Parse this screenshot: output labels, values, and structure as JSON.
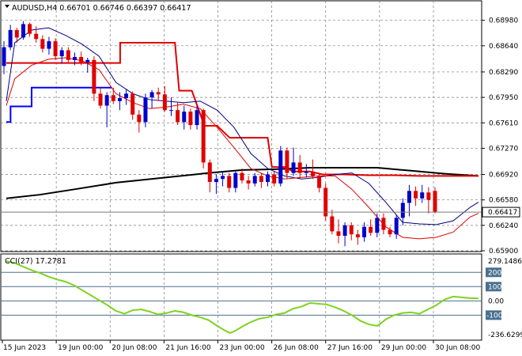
{
  "header": {
    "title": "AUDUSD,H4  0.66701 0.66746 0.66397 0.66417",
    "indicator": "CCI(27) 17.2781"
  },
  "chart_data": [
    {
      "type": "candlestick",
      "symbol": "AUDUSD",
      "timeframe": "H4",
      "ohlc_last": {
        "open": 0.66701,
        "high": 0.66746,
        "low": 0.66397,
        "close": 0.66417
      },
      "current_price_label": "0.66417",
      "ylim": [
        0.659,
        0.6904
      ],
      "y_ticks": [
        "0.68980",
        "0.68640",
        "0.68290",
        "0.67950",
        "0.67610",
        "0.67270",
        "0.66920",
        "0.66580",
        "0.66240",
        "0.65900"
      ],
      "x_ticks": [
        "15 Jun 2023",
        "19 Jun 00:00",
        "20 Jun 08:00",
        "21 Jun 16:00",
        "23 Jun 00:00",
        "26 Jun 08:00",
        "27 Jun 16:00",
        "29 Jun 00:00",
        "30 Jun 08:00"
      ],
      "candles": [
        [
          0.6837,
          0.687,
          0.6826,
          0.6862
        ],
        [
          0.6862,
          0.6892,
          0.6858,
          0.6885
        ],
        [
          0.6885,
          0.6888,
          0.6868,
          0.6875
        ],
        [
          0.6875,
          0.6897,
          0.6872,
          0.6893
        ],
        [
          0.6893,
          0.6895,
          0.6876,
          0.688
        ],
        [
          0.688,
          0.689,
          0.6868,
          0.6873
        ],
        [
          0.6873,
          0.6878,
          0.6855,
          0.686
        ],
        [
          0.686,
          0.6876,
          0.6852,
          0.687
        ],
        [
          0.687,
          0.6874,
          0.6845,
          0.685
        ],
        [
          0.685,
          0.6862,
          0.684,
          0.6858
        ],
        [
          0.6858,
          0.6862,
          0.684,
          0.6845
        ],
        [
          0.6845,
          0.6855,
          0.6838,
          0.6849
        ],
        [
          0.6849,
          0.6856,
          0.6838,
          0.6842
        ],
        [
          0.6842,
          0.6848,
          0.6828,
          0.6845
        ],
        [
          0.6845,
          0.685,
          0.679,
          0.68
        ],
        [
          0.68,
          0.6808,
          0.678,
          0.6784
        ],
        [
          0.6784,
          0.6802,
          0.6755,
          0.6798
        ],
        [
          0.6798,
          0.6808,
          0.6786,
          0.679
        ],
        [
          0.679,
          0.6802,
          0.6778,
          0.6794
        ],
        [
          0.6794,
          0.6806,
          0.6785,
          0.68
        ],
        [
          0.68,
          0.6803,
          0.6765,
          0.6772
        ],
        [
          0.6772,
          0.6778,
          0.6748,
          0.6762
        ],
        [
          0.6762,
          0.68,
          0.6755,
          0.6795
        ],
        [
          0.6795,
          0.6805,
          0.678,
          0.6802
        ],
        [
          0.6802,
          0.6808,
          0.679,
          0.6799
        ],
        [
          0.6799,
          0.681,
          0.6776,
          0.6778
        ],
        [
          0.6778,
          0.6795,
          0.677,
          0.6778
        ],
        [
          0.6778,
          0.6788,
          0.6758,
          0.6762
        ],
        [
          0.6762,
          0.6784,
          0.6752,
          0.6776
        ],
        [
          0.6776,
          0.678,
          0.6752,
          0.6758
        ],
        [
          0.6758,
          0.6784,
          0.6752,
          0.6778
        ],
        [
          0.6778,
          0.678,
          0.67,
          0.6708
        ],
        [
          0.6708,
          0.6712,
          0.6668,
          0.6682
        ],
        [
          0.6682,
          0.6692,
          0.6666,
          0.6686
        ],
        [
          0.6686,
          0.6696,
          0.6676,
          0.669
        ],
        [
          0.669,
          0.6694,
          0.6668,
          0.6674
        ],
        [
          0.6674,
          0.6696,
          0.6668,
          0.6694
        ],
        [
          0.6694,
          0.67,
          0.668,
          0.6684
        ],
        [
          0.6684,
          0.669,
          0.6672,
          0.668
        ],
        [
          0.668,
          0.6694,
          0.6676,
          0.669
        ],
        [
          0.669,
          0.6694,
          0.6674,
          0.6682
        ],
        [
          0.6682,
          0.6696,
          0.6676,
          0.6692
        ],
        [
          0.6692,
          0.6696,
          0.6676,
          0.668
        ],
        [
          0.668,
          0.673,
          0.6676,
          0.6724
        ],
        [
          0.6724,
          0.6728,
          0.6686,
          0.6694
        ],
        [
          0.6694,
          0.6728,
          0.669,
          0.6708
        ],
        [
          0.6708,
          0.6718,
          0.6686,
          0.6694
        ],
        [
          0.6694,
          0.6706,
          0.6688,
          0.6696
        ],
        [
          0.6696,
          0.6712,
          0.6686,
          0.669
        ],
        [
          0.669,
          0.6694,
          0.6668,
          0.6674
        ],
        [
          0.6674,
          0.668,
          0.663,
          0.6636
        ],
        [
          0.6636,
          0.6645,
          0.6612,
          0.6616
        ],
        [
          0.6616,
          0.6632,
          0.66,
          0.661
        ],
        [
          0.661,
          0.6628,
          0.6596,
          0.6624
        ],
        [
          0.6624,
          0.6628,
          0.6604,
          0.6612
        ],
        [
          0.6612,
          0.6618,
          0.6598,
          0.6608
        ],
        [
          0.6608,
          0.6628,
          0.6602,
          0.6622
        ],
        [
          0.6622,
          0.6632,
          0.661,
          0.6614
        ],
        [
          0.6614,
          0.664,
          0.6608,
          0.6634
        ],
        [
          0.6634,
          0.664,
          0.6612,
          0.6618
        ],
        [
          0.6618,
          0.6622,
          0.6608,
          0.6612
        ],
        [
          0.6612,
          0.6638,
          0.6606,
          0.6634
        ],
        [
          0.6634,
          0.666,
          0.6624,
          0.6654
        ],
        [
          0.6654,
          0.6678,
          0.6636,
          0.667
        ],
        [
          0.667,
          0.6676,
          0.665,
          0.666
        ],
        [
          0.666,
          0.6678,
          0.6654,
          0.6668
        ],
        [
          0.6668,
          0.6675,
          0.664,
          0.6658
        ],
        [
          0.667,
          0.6675,
          0.664,
          0.6642
        ]
      ],
      "overlays": {
        "red_step_line": [
          [
            0,
            0.6841
          ],
          [
            2,
            0.6841
          ],
          [
            26,
            0.6841
          ],
          [
            27,
            0.6841
          ],
          [
            27,
            0.6868
          ],
          [
            40,
            0.6868
          ],
          [
            40,
            0.6868
          ],
          [
            41,
            0.6804
          ],
          [
            44,
            0.6804
          ],
          [
            47,
            0.6757
          ],
          [
            50,
            0.6757
          ],
          [
            53,
            0.6741
          ],
          [
            62,
            0.6741
          ],
          [
            63,
            0.6702
          ],
          [
            66,
            0.6702
          ],
          [
            68,
            0.6696
          ],
          [
            72,
            0.6696
          ],
          [
            75,
            0.6692
          ],
          [
            80,
            0.6692
          ],
          [
            86,
            0.6691
          ],
          [
            92,
            0.6691
          ],
          [
            98,
            0.669
          ],
          [
            112,
            0.669
          ]
        ],
        "blue_step_line": [
          [
            0,
            0.6762
          ],
          [
            0,
            0.6762
          ],
          [
            1,
            0.6762
          ],
          [
            1,
            0.6783
          ],
          [
            6,
            0.6783
          ],
          [
            6,
            0.6808
          ],
          [
            25,
            0.6808
          ]
        ],
        "black_ma": [
          [
            0,
            0.666
          ],
          [
            8,
            0.6665
          ],
          [
            16,
            0.6672
          ],
          [
            26,
            0.6681
          ],
          [
            38,
            0.6688
          ],
          [
            48,
            0.6694
          ],
          [
            56,
            0.6698
          ],
          [
            64,
            0.6699
          ],
          [
            72,
            0.6701
          ],
          [
            80,
            0.6701
          ],
          [
            88,
            0.6701
          ],
          [
            96,
            0.6697
          ],
          [
            104,
            0.6693
          ],
          [
            112,
            0.669
          ]
        ],
        "navy_ma": [
          [
            0,
            0.679
          ],
          [
            2,
            0.6868
          ],
          [
            6,
            0.6885
          ],
          [
            10,
            0.6888
          ],
          [
            14,
            0.6878
          ],
          [
            18,
            0.6866
          ],
          [
            22,
            0.685
          ],
          [
            26,
            0.6815
          ],
          [
            30,
            0.68
          ],
          [
            34,
            0.6792
          ],
          [
            38,
            0.679
          ],
          [
            42,
            0.6788
          ],
          [
            46,
            0.679
          ],
          [
            50,
            0.6778
          ],
          [
            54,
            0.6755
          ],
          [
            58,
            0.672
          ],
          [
            62,
            0.67
          ],
          [
            66,
            0.669
          ],
          [
            70,
            0.6686
          ],
          [
            74,
            0.6688
          ],
          [
            78,
            0.6692
          ],
          [
            82,
            0.6694
          ],
          [
            86,
            0.668
          ],
          [
            90,
            0.6655
          ],
          [
            94,
            0.6628
          ],
          [
            98,
            0.6626
          ],
          [
            102,
            0.6625
          ],
          [
            106,
            0.663
          ],
          [
            110,
            0.6648
          ],
          [
            112,
            0.6655
          ]
        ],
        "red_ma": [
          [
            0,
            0.6784
          ],
          [
            2,
            0.682
          ],
          [
            6,
            0.6838
          ],
          [
            10,
            0.6846
          ],
          [
            14,
            0.6848
          ],
          [
            18,
            0.6844
          ],
          [
            22,
            0.6832
          ],
          [
            26,
            0.68
          ],
          [
            30,
            0.6788
          ],
          [
            34,
            0.678
          ],
          [
            38,
            0.6782
          ],
          [
            42,
            0.6786
          ],
          [
            46,
            0.678
          ],
          [
            50,
            0.6755
          ],
          [
            54,
            0.6728
          ],
          [
            58,
            0.67
          ],
          [
            62,
            0.669
          ],
          [
            66,
            0.6686
          ],
          [
            70,
            0.6688
          ],
          [
            74,
            0.669
          ],
          [
            78,
            0.669
          ],
          [
            82,
            0.6672
          ],
          [
            86,
            0.6648
          ],
          [
            90,
            0.6622
          ],
          [
            94,
            0.6608
          ],
          [
            98,
            0.6606
          ],
          [
            102,
            0.6608
          ],
          [
            106,
            0.6615
          ],
          [
            110,
            0.6635
          ],
          [
            112,
            0.664
          ]
        ]
      }
    },
    {
      "type": "line",
      "name": "CCI(27)",
      "current_value": 17.2781,
      "ylim": [
        -236.6299,
        279.1486
      ],
      "y_ticks": [
        "279.1486",
        "200",
        "100",
        "0.00",
        "-100",
        "-236.6299"
      ],
      "levels": [
        200,
        100,
        0,
        -100
      ],
      "values": [
        [
          0,
          279
        ],
        [
          2,
          265
        ],
        [
          4,
          240
        ],
        [
          6,
          215
        ],
        [
          8,
          195
        ],
        [
          10,
          170
        ],
        [
          12,
          150
        ],
        [
          14,
          135
        ],
        [
          16,
          110
        ],
        [
          18,
          75
        ],
        [
          20,
          40
        ],
        [
          22,
          5
        ],
        [
          24,
          -30
        ],
        [
          26,
          -70
        ],
        [
          28,
          -90
        ],
        [
          30,
          -65
        ],
        [
          32,
          -60
        ],
        [
          34,
          -75
        ],
        [
          36,
          -95
        ],
        [
          38,
          -85
        ],
        [
          40,
          -70
        ],
        [
          42,
          -80
        ],
        [
          44,
          -100
        ],
        [
          46,
          -115
        ],
        [
          48,
          -135
        ],
        [
          50,
          -175
        ],
        [
          52,
          -210
        ],
        [
          53,
          -225
        ],
        [
          54,
          -215
        ],
        [
          56,
          -180
        ],
        [
          58,
          -148
        ],
        [
          60,
          -125
        ],
        [
          62,
          -115
        ],
        [
          64,
          -95
        ],
        [
          66,
          -85
        ],
        [
          68,
          -55
        ],
        [
          70,
          -40
        ],
        [
          72,
          -15
        ],
        [
          74,
          -20
        ],
        [
          76,
          -25
        ],
        [
          78,
          -45
        ],
        [
          80,
          -70
        ],
        [
          82,
          -100
        ],
        [
          84,
          -140
        ],
        [
          86,
          -165
        ],
        [
          88,
          -175
        ],
        [
          90,
          -130
        ],
        [
          92,
          -100
        ],
        [
          94,
          -85
        ],
        [
          96,
          -80
        ],
        [
          98,
          -90
        ],
        [
          100,
          -60
        ],
        [
          102,
          -30
        ],
        [
          104,
          10
        ],
        [
          106,
          30
        ],
        [
          108,
          25
        ],
        [
          110,
          20
        ],
        [
          112,
          17
        ]
      ]
    }
  ],
  "colors": {
    "up_candle": "#0000cc",
    "down_candle": "#e00000",
    "red_line": "#e00000",
    "blue_line": "#0000ff",
    "black_ma": "#000000",
    "navy_ma": "#000080",
    "red_ma": "#e00000",
    "cci_line": "#7ed321",
    "grid": "#7a7a7a",
    "level_line": "#4a7090"
  }
}
